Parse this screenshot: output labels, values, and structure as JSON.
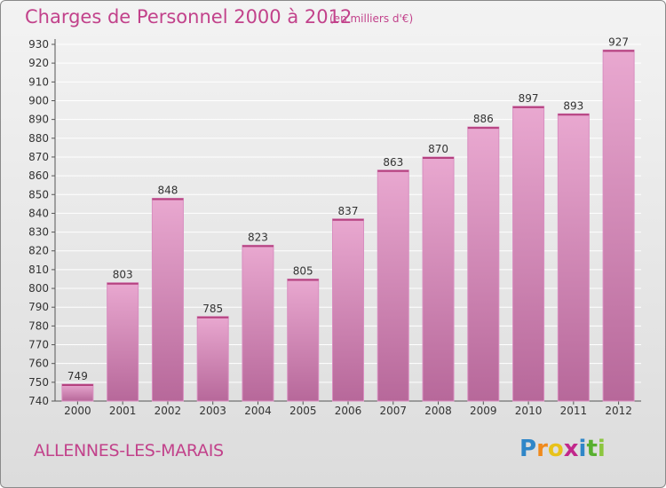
{
  "title": "Charges de Personnel 2000 à 2012",
  "subtitle": "(en milliers d'€)",
  "city": "ALLENNES-LES-MARAIS",
  "logo": {
    "letters": [
      "P",
      "r",
      "o",
      "x",
      "i",
      "t",
      "i"
    ],
    "colors": [
      "#2f86c8",
      "#f08a1c",
      "#e8c21a",
      "#c2288b",
      "#2f86c8",
      "#58b030",
      "#8cc63f"
    ]
  },
  "colors": {
    "accent": "#c2428b",
    "bar_top": "#e9a8d0",
    "bar_bottom": "#b7689a"
  },
  "chart_data": {
    "type": "bar",
    "title": "Charges de Personnel 2000 à 2012",
    "subtitle": "(en milliers d'€)",
    "categories": [
      "2000",
      "2001",
      "2002",
      "2003",
      "2004",
      "2005",
      "2006",
      "2007",
      "2008",
      "2009",
      "2010",
      "2011",
      "2012"
    ],
    "values": [
      749,
      803,
      848,
      785,
      823,
      805,
      837,
      863,
      870,
      886,
      897,
      893,
      927
    ],
    "ylim": [
      740,
      930
    ],
    "yticks": [
      740,
      750,
      760,
      770,
      780,
      790,
      800,
      810,
      820,
      830,
      840,
      850,
      860,
      870,
      880,
      890,
      900,
      910,
      920,
      930
    ],
    "grid": true,
    "xlabel": "",
    "ylabel": ""
  }
}
